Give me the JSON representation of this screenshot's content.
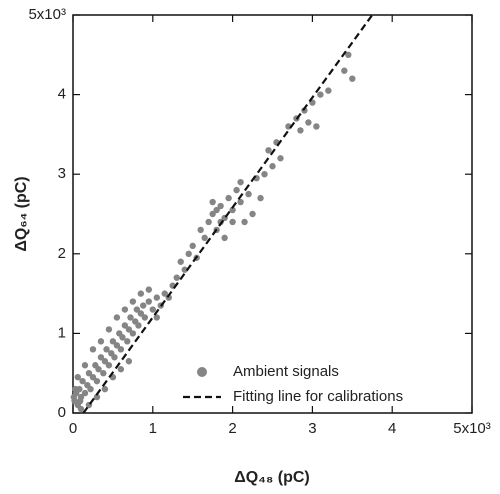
{
  "chart_data": {
    "type": "scatter",
    "xlabel": "ΔQ₄₈ (pC)",
    "ylabel": "ΔQ₆₄ (pC)",
    "xlim": [
      0,
      5000
    ],
    "ylim": [
      0,
      5000
    ],
    "xticks": [
      {
        "value": 0,
        "label": "0"
      },
      {
        "value": 1000,
        "label": "1"
      },
      {
        "value": 2000,
        "label": "2"
      },
      {
        "value": 3000,
        "label": "3"
      },
      {
        "value": 4000,
        "label": "4"
      },
      {
        "value": 5000,
        "label": "5x10³"
      }
    ],
    "yticks": [
      {
        "value": 0,
        "label": "0"
      },
      {
        "value": 1000,
        "label": "1"
      },
      {
        "value": 2000,
        "label": "2"
      },
      {
        "value": 3000,
        "label": "3"
      },
      {
        "value": 4000,
        "label": "4"
      },
      {
        "value": 5000,
        "label": "5x10³"
      }
    ],
    "legend": "lower right",
    "series": [
      {
        "name": "Ambient signals",
        "type": "scatter",
        "color": "#858585",
        "x": [
          20,
          40,
          60,
          80,
          100,
          120,
          150,
          180,
          200,
          220,
          250,
          280,
          300,
          320,
          350,
          380,
          400,
          420,
          450,
          480,
          500,
          520,
          550,
          580,
          600,
          620,
          650,
          680,
          700,
          720,
          750,
          780,
          800,
          820,
          850,
          880,
          900,
          950,
          1000,
          1050,
          1100,
          1150,
          1200,
          1250,
          100,
          200,
          300,
          400,
          500,
          600,
          700,
          150,
          250,
          350,
          450,
          550,
          650,
          750,
          850,
          950,
          1050,
          60,
          30,
          10,
          90,
          1300,
          1350,
          1400,
          1450,
          1500,
          1550,
          1600,
          1650,
          1700,
          1750,
          1800,
          1850,
          1900,
          1950,
          2000,
          2050,
          2100,
          2150,
          2200,
          1750,
          1800,
          1850,
          1900,
          2000,
          2100,
          2250,
          2300,
          2350,
          2400,
          2450,
          2500,
          2550,
          2600,
          2700,
          2800,
          2850,
          2900,
          2950,
          3000,
          3050,
          3100,
          3200,
          3400,
          3450,
          3500
        ],
        "values": [
          150,
          250,
          100,
          300,
          200,
          400,
          250,
          350,
          500,
          300,
          450,
          600,
          400,
          550,
          700,
          500,
          650,
          800,
          600,
          750,
          900,
          700,
          850,
          1000,
          800,
          950,
          1100,
          900,
          1050,
          1200,
          1000,
          1150,
          1300,
          1100,
          1250,
          1350,
          1200,
          1400,
          1300,
          1450,
          1350,
          1500,
          1450,
          1600,
          50,
          100,
          200,
          300,
          450,
          550,
          650,
          600,
          800,
          900,
          1050,
          1200,
          1300,
          1400,
          1500,
          1550,
          1200,
          450,
          300,
          200,
          150,
          1700,
          1900,
          1800,
          2000,
          2100,
          1950,
          2300,
          2200,
          2400,
          2500,
          2300,
          2600,
          2450,
          2700,
          2550,
          2800,
          2650,
          2400,
          2750,
          2650,
          2550,
          2400,
          2200,
          2400,
          2900,
          2500,
          2950,
          2700,
          3000,
          3300,
          3100,
          3400,
          3200,
          3600,
          3700,
          3550,
          3800,
          3650,
          3900,
          3600,
          4000,
          4050,
          4300,
          4500,
          4200
        ]
      },
      {
        "name": "Fitting line for calibrations",
        "type": "line",
        "color": "#111111",
        "x": [
          130,
          3750
        ],
        "values": [
          0,
          5000
        ]
      }
    ]
  }
}
